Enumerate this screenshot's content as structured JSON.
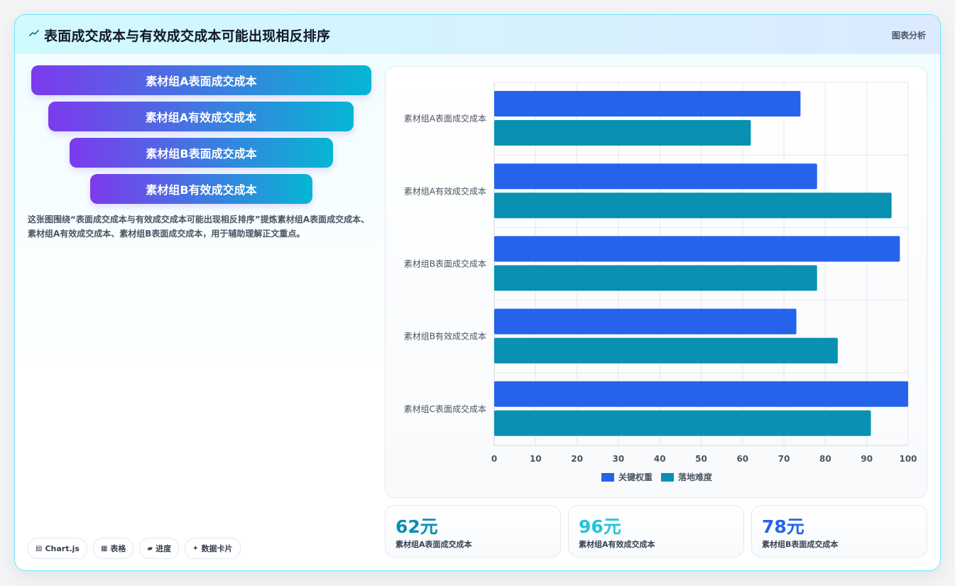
{
  "header": {
    "title": "表面成交成本与有效成交成本可能出现相反排序",
    "tag": "图表分析",
    "icon": "trend-icon"
  },
  "funnel": [
    {
      "label": "素材组A表面成交成本"
    },
    {
      "label": "素材组A有效成交成本"
    },
    {
      "label": "素材组B表面成交成本"
    },
    {
      "label": "素材组B有效成交成本"
    }
  ],
  "description": "这张图围绕“表面成交成本与有效成交成本可能出现相反排序”提炼素材组A表面成交成本、素材组A有效成交成本、素材组B表面成交成本，用于辅助理解正文重点。",
  "chips": [
    {
      "icon": "▤",
      "label": "Chart.js"
    },
    {
      "icon": "▦",
      "label": "表格"
    },
    {
      "icon": "▰",
      "label": "进度"
    },
    {
      "icon": "✦",
      "label": "数据卡片"
    }
  ],
  "stats": [
    {
      "value": "62元",
      "label": "素材组A表面成交成本",
      "color": "#0891b2"
    },
    {
      "value": "96元",
      "label": "素材组A有效成交成本",
      "color": "#22c5d8"
    },
    {
      "value": "78元",
      "label": "素材组B表面成交成本",
      "color": "#2563eb"
    }
  ],
  "chart_data": {
    "type": "bar",
    "orientation": "horizontal",
    "categories": [
      "素材组A表面成交成本",
      "素材组A有效成交成本",
      "素材组B表面成交成本",
      "素材组B有效成交成本",
      "素材组C表面成交成本"
    ],
    "series": [
      {
        "name": "关键权重",
        "values": [
          74,
          78,
          98,
          73,
          100
        ],
        "color": "#2563eb"
      },
      {
        "name": "落地难度",
        "values": [
          62,
          96,
          78,
          83,
          91
        ],
        "color": "#0891b2"
      }
    ],
    "xlim": [
      0,
      100
    ],
    "xticks": [
      0,
      10,
      20,
      30,
      40,
      50,
      60,
      70,
      80,
      90,
      100
    ],
    "grid": true,
    "legend": "bottom"
  }
}
